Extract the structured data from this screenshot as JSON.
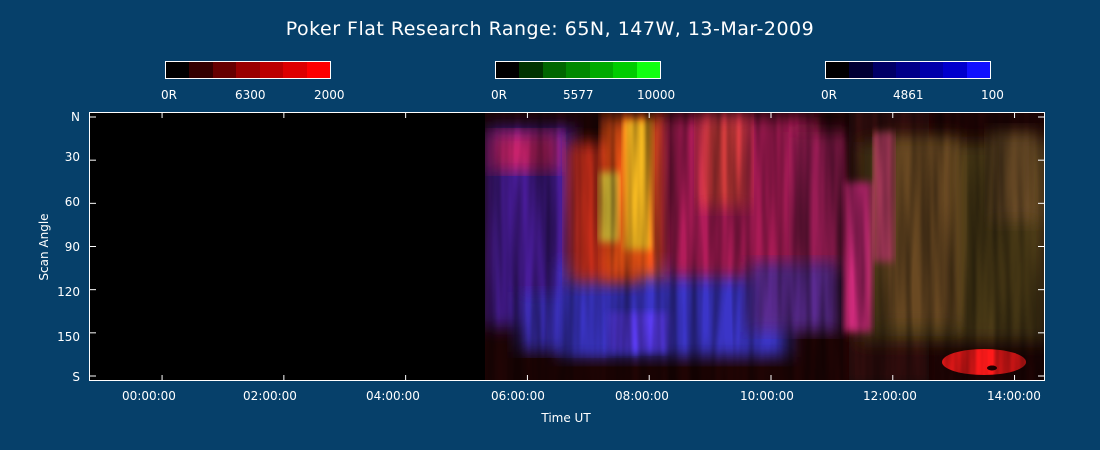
{
  "title": "Poker Flat Research Range: 65N, 147W, 13-Mar-2009",
  "colorbars": [
    {
      "name": "6300",
      "min_label": "0R",
      "mid_label": "6300",
      "max_label": "2000",
      "colors": [
        "#000000",
        "#330000",
        "#660000",
        "#990000",
        "#bb0000",
        "#dd0000",
        "#ff0000"
      ]
    },
    {
      "name": "5577",
      "min_label": "0R",
      "mid_label": "5577",
      "max_label": "10000",
      "colors": [
        "#000000",
        "#003300",
        "#006600",
        "#008800",
        "#00aa00",
        "#00cc00",
        "#11ff11"
      ]
    },
    {
      "name": "4861",
      "min_label": "0R",
      "mid_label": "4861",
      "max_label": "100",
      "colors": [
        "#000000",
        "#000033",
        "#000066",
        "#000088",
        "#0000aa",
        "#0000cc",
        "#1111ff"
      ]
    }
  ],
  "chart_data": {
    "type": "heatmap",
    "title": "Poker Flat Research Range: 65N, 147W, 13-Mar-2009",
    "xlabel": "Time UT",
    "ylabel": "Scan Angle",
    "x_ticks": [
      "00:00:00",
      "02:00:00",
      "04:00:00",
      "06:00:00",
      "08:00:00",
      "10:00:00",
      "12:00:00",
      "14:00:00"
    ],
    "x_tick_hours": [
      0,
      2,
      4,
      6,
      8,
      10,
      12,
      14
    ],
    "xlim_hours": [
      -1.2,
      14.5
    ],
    "y_ticks": [
      "N",
      "30",
      "60",
      "90",
      "120",
      "150",
      "S"
    ],
    "y_tick_values": [
      0,
      30,
      60,
      90,
      120,
      150,
      180
    ],
    "ylim": [
      0,
      180
    ],
    "data_start_hour": 5.5,
    "no_data_color": "#000000",
    "emission_lines": [
      "6300",
      "5577",
      "4861"
    ]
  }
}
